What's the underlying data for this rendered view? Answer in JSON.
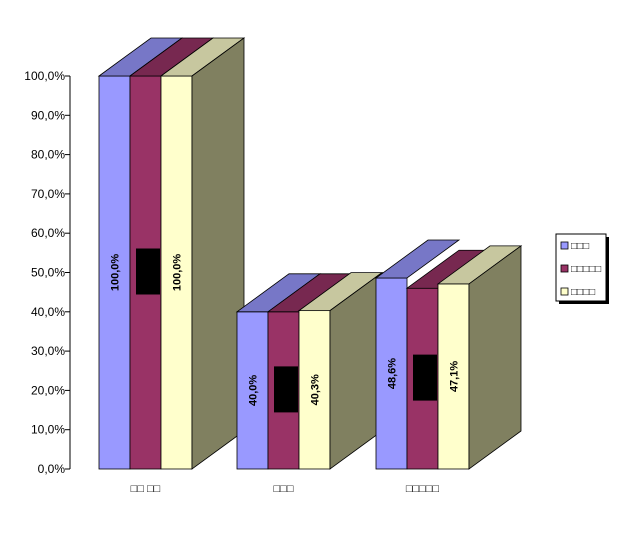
{
  "chart_data": {
    "type": "bar",
    "variant": "3d-clustered-column",
    "categories": [
      "□□ □□",
      "□□□",
      "□□□□□"
    ],
    "series": [
      {
        "name": "□□□",
        "color": "#9999ff",
        "values": [
          100.0,
          40.0,
          48.6
        ]
      },
      {
        "name": "□□□□□",
        "color": "#993366",
        "values": [
          100.0,
          40.0,
          46.0
        ]
      },
      {
        "name": "□□□□",
        "color": "#ffffcc",
        "values": [
          100.0,
          40.3,
          47.1
        ]
      }
    ],
    "data_labels": [
      {
        "series": 0,
        "category": 0,
        "text": "100,0%"
      },
      {
        "series": 2,
        "category": 0,
        "text": "100,0%"
      },
      {
        "series": 0,
        "category": 1,
        "text": "40,0%"
      },
      {
        "series": 2,
        "category": 1,
        "text": "40,3%"
      },
      {
        "series": 0,
        "category": 2,
        "text": "48,6%"
      },
      {
        "series": 2,
        "category": 2,
        "text": "47,1%"
      }
    ],
    "ylim": [
      0,
      100
    ],
    "yticks": [
      "0,0%",
      "10,0%",
      "20,0%",
      "30,0%",
      "40,0%",
      "50,0%",
      "60,0%",
      "70,0%",
      "80,0%",
      "90,0%",
      "100,0%"
    ],
    "grid": false,
    "legend_position": "right",
    "title": "",
    "xlabel": "",
    "ylabel": ""
  }
}
